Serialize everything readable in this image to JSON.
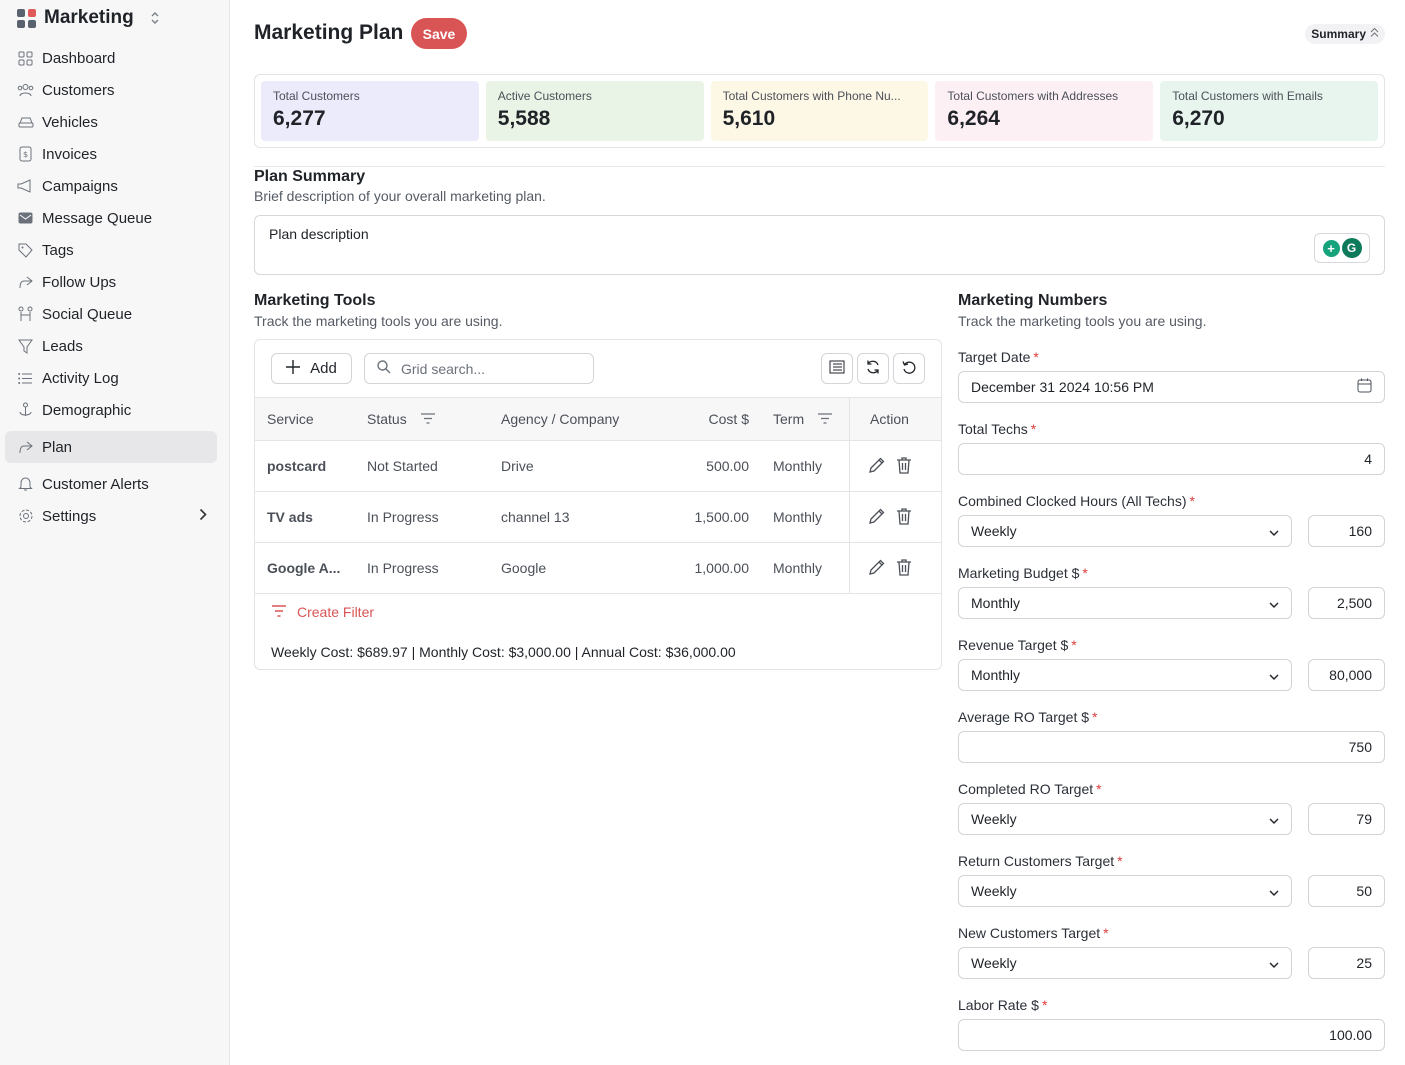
{
  "sidebar": {
    "brand": "Marketing",
    "items": [
      {
        "label": "Dashboard",
        "icon": "dashboard-icon"
      },
      {
        "label": "Customers",
        "icon": "users-icon"
      },
      {
        "label": "Vehicles",
        "icon": "car-icon"
      },
      {
        "label": "Invoices",
        "icon": "invoice-icon"
      },
      {
        "label": "Campaigns",
        "icon": "megaphone-icon"
      },
      {
        "label": "Message Queue",
        "icon": "mail-icon"
      },
      {
        "label": "Tags",
        "icon": "tag-icon"
      },
      {
        "label": "Follow Ups",
        "icon": "share-icon"
      },
      {
        "label": "Social Queue",
        "icon": "people-icon"
      },
      {
        "label": "Leads",
        "icon": "funnel-icon"
      },
      {
        "label": "Activity Log",
        "icon": "list-icon"
      },
      {
        "label": "Demographic",
        "icon": "anchor-icon"
      },
      {
        "label": "Plan",
        "icon": "share-icon",
        "active": true
      },
      {
        "label": "Customer Alerts",
        "icon": "bell-icon"
      },
      {
        "label": "Settings",
        "icon": "gear-icon"
      }
    ]
  },
  "header": {
    "title": "Marketing Plan",
    "save_label": "Save",
    "summary_label": "Summary"
  },
  "stats": [
    {
      "label": "Total Customers",
      "value": "6,277",
      "color": "#ecebfb"
    },
    {
      "label": "Active Customers",
      "value": "5,588",
      "color": "#eaf4e6"
    },
    {
      "label": "Total Customers with Phone Nu...",
      "value": "5,610",
      "color": "#fdf7e6"
    },
    {
      "label": "Total Customers with Addresses",
      "value": "6,264",
      "color": "#fcf0f5"
    },
    {
      "label": "Total Customers with Emails",
      "value": "6,270",
      "color": "#e8f5ee"
    }
  ],
  "plan_summary": {
    "title": "Plan Summary",
    "subtitle": "Brief description of your overall marketing plan.",
    "placeholder": "Plan description"
  },
  "tools": {
    "title": "Marketing Tools",
    "subtitle": "Track the marketing tools you are using.",
    "add_label": "Add",
    "search_placeholder": "Grid search...",
    "columns": {
      "service": "Service",
      "status": "Status",
      "agency": "Agency / Company",
      "cost": "Cost $",
      "term": "Term",
      "action": "Action"
    },
    "rows": [
      {
        "service": "postcard",
        "status": "Not Started",
        "agency": "Drive",
        "cost": "500.00",
        "term": "Monthly"
      },
      {
        "service": "TV ads",
        "status": "In Progress",
        "agency": "channel 13",
        "cost": "1,500.00",
        "term": "Monthly"
      },
      {
        "service": "Google A...",
        "status": "In Progress",
        "agency": "Google",
        "cost": "1,000.00",
        "term": "Monthly"
      }
    ],
    "create_filter_label": "Create Filter",
    "cost_summary": "Weekly Cost: $689.97 | Monthly Cost: $3,000.00 | Annual Cost: $36,000.00"
  },
  "numbers": {
    "title": "Marketing Numbers",
    "subtitle": "Track the marketing tools you are using.",
    "target_date": {
      "label": "Target Date",
      "value": "December 31 2024 10:56 PM"
    },
    "total_techs": {
      "label": "Total Techs",
      "value": "4"
    },
    "clocked_hours": {
      "label": "Combined Clocked Hours (All Techs)",
      "period": "Weekly",
      "value": "160"
    },
    "marketing_budget": {
      "label": "Marketing Budget $",
      "period": "Monthly",
      "value": "2,500"
    },
    "revenue_target": {
      "label": "Revenue Target $",
      "period": "Monthly",
      "value": "80,000"
    },
    "avg_ro_target": {
      "label": "Average RO Target $",
      "value": "750"
    },
    "completed_ro_target": {
      "label": "Completed RO Target",
      "period": "Weekly",
      "value": "79"
    },
    "return_customers_target": {
      "label": "Return Customers Target",
      "period": "Weekly",
      "value": "50"
    },
    "new_customers_target": {
      "label": "New Customers Target",
      "period": "Weekly",
      "value": "25"
    },
    "labor_rate": {
      "label": "Labor Rate $",
      "value": "100.00"
    }
  }
}
